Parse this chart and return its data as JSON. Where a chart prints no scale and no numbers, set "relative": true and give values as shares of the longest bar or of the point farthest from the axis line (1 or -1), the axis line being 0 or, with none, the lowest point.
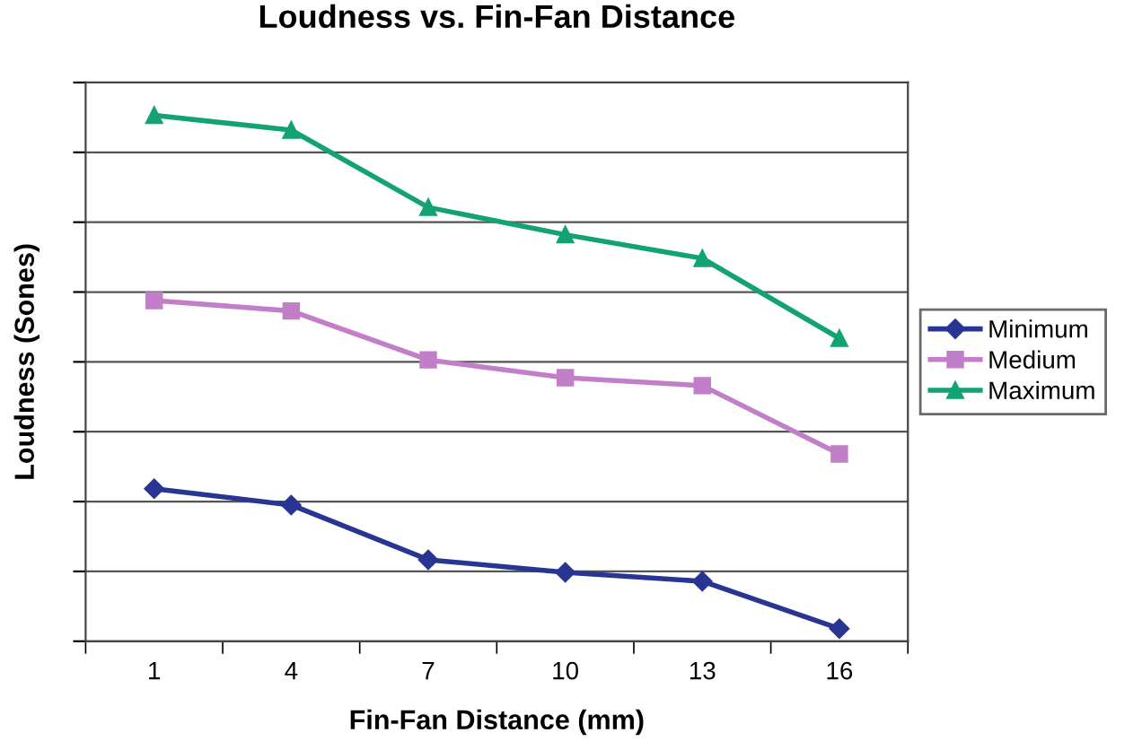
{
  "chart_data": {
    "type": "line",
    "title": "Loudness vs. Fin-Fan Distance",
    "xlabel": "Fin-Fan Distance (mm)",
    "ylabel": "Loudness (Sones)",
    "categories": [
      "1",
      "4",
      "7",
      "10",
      "13",
      "16"
    ],
    "relative": true,
    "grid": "y",
    "legend": "right",
    "series": [
      {
        "name": "Minimum",
        "color": "#283593",
        "marker": "diamond",
        "values": [
          0.29,
          0.259,
          0.155,
          0.131,
          0.114,
          0.024
        ]
      },
      {
        "name": "Medium",
        "color": "#c27ec9",
        "marker": "square",
        "values": [
          0.648,
          0.628,
          0.535,
          0.501,
          0.486,
          0.356
        ]
      },
      {
        "name": "Maximum",
        "color": "#12a370",
        "marker": "triangle",
        "values": [
          1,
          0.972,
          0.825,
          0.773,
          0.728,
          0.576
        ]
      }
    ]
  }
}
